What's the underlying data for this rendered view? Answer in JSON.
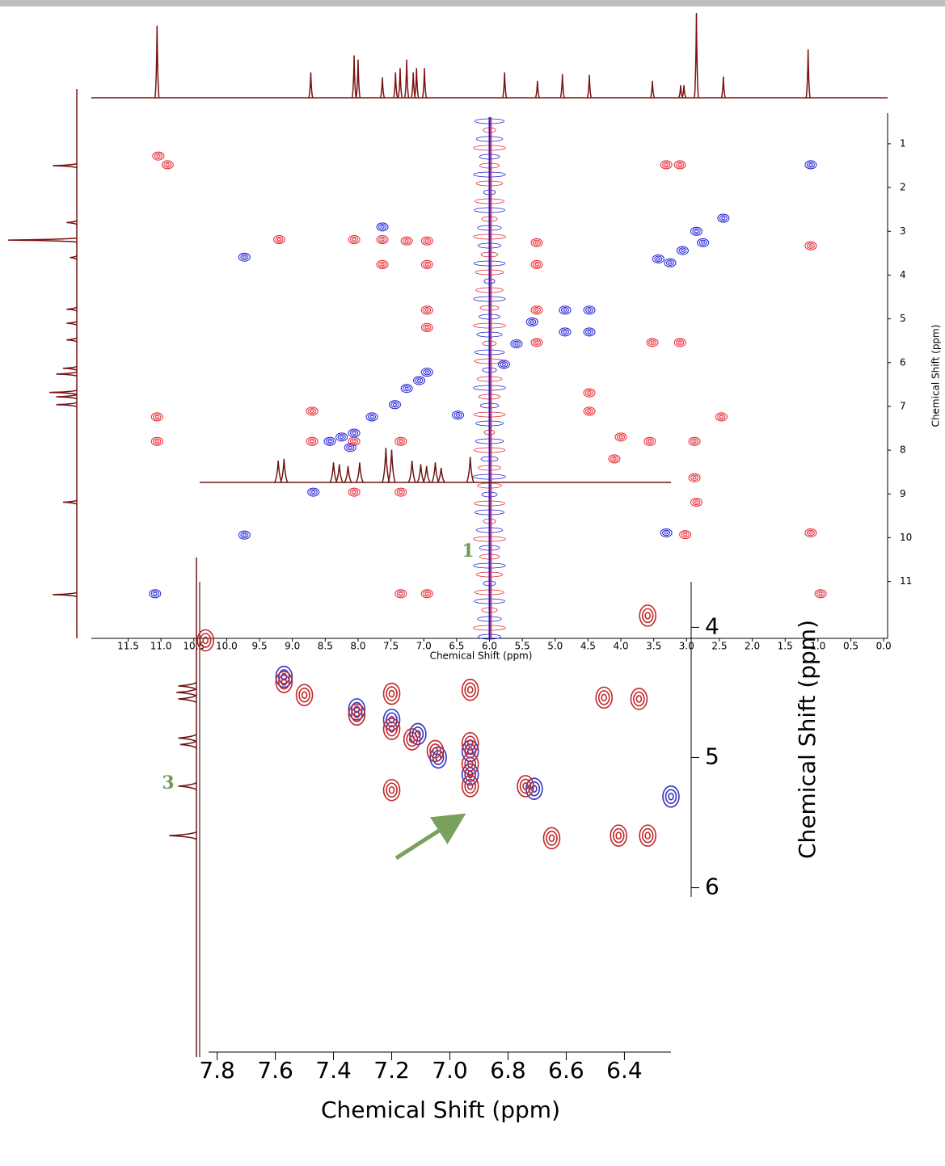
{
  "chart_data": [
    {
      "type": "nmr2d",
      "xlabel": "Chemical Shift (ppm)",
      "ylabel": "Chemical Shift (ppm)",
      "xlim": [
        12.06,
        -0.06
      ],
      "ylim": [
        0.3,
        12.3
      ],
      "xticks": [
        11.5,
        {
          "value": 11,
          "label": "11.0"
        },
        10.5,
        {
          "value": 10,
          "label": "10.0"
        },
        9.5,
        {
          "value": 9,
          "label": "9.0"
        },
        8.5,
        {
          "value": 8,
          "label": "8.0"
        },
        7.5,
        {
          "value": 7,
          "label": "7.0"
        },
        6.5,
        {
          "value": 6,
          "label": "6.0"
        },
        5.5,
        {
          "value": 5,
          "label": "5.0"
        },
        4.5,
        {
          "value": 4,
          "label": "4.0"
        },
        3.5,
        {
          "value": 3,
          "label": "3.0"
        },
        2.5,
        {
          "value": 2,
          "label": "2.0"
        },
        1.5,
        {
          "value": 1,
          "label": "1.0"
        },
        0.5,
        {
          "value": 0,
          "label": "0.0"
        }
      ],
      "yticks": [
        1,
        2,
        3,
        4,
        5,
        6,
        7,
        8,
        9,
        10,
        11
      ],
      "ridge_x": [
        6.0
      ],
      "series": [
        {
          "color": "#1c1cd8",
          "x": [
            1.11,
            2.44,
            2.75,
            3.06,
            3.25,
            3.43,
            4.85,
            5.35,
            4.85,
            4.48,
            4.48,
            5.59,
            5.78,
            6.95,
            7.07,
            7.26,
            7.44,
            7.79,
            8.06,
            8.25,
            8.43,
            8.12,
            8.68,
            9.73,
            11.09,
            9.73,
            3.31,
            6.48,
            7.63,
            2.85
          ],
          "values": [
            1.48,
            2.7,
            3.26,
            3.44,
            3.72,
            3.63,
            4.8,
            5.07,
            5.3,
            4.8,
            5.3,
            5.57,
            6.04,
            6.22,
            6.41,
            6.59,
            6.96,
            7.24,
            7.61,
            7.7,
            7.8,
            7.94,
            8.96,
            9.94,
            11.28,
            3.59,
            9.89,
            7.2,
            2.9,
            3.0
          ]
        },
        {
          "color": "#e8202a",
          "x": [
            11.04,
            10.9,
            11.06,
            11.06,
            9.2,
            8.06,
            7.63,
            7.26,
            6.95,
            7.63,
            6.95,
            5.28,
            5.28,
            1.11,
            6.95,
            6.95,
            5.28,
            5.28,
            3.52,
            3.1,
            3.1,
            3.31,
            8.7,
            8.7,
            8.06,
            7.35,
            4.48,
            4.48,
            2.88,
            2.88,
            2.85,
            3.02,
            1.11,
            7.35,
            6.95,
            0.96,
            2.47,
            3.56,
            8.06,
            7.35,
            4.0,
            4.1
          ],
          "values": [
            1.28,
            1.48,
            7.24,
            7.8,
            3.19,
            3.19,
            3.19,
            3.22,
            3.22,
            3.76,
            3.76,
            3.76,
            3.26,
            3.33,
            4.8,
            5.2,
            4.8,
            5.54,
            5.54,
            5.54,
            1.48,
            1.48,
            7.11,
            7.8,
            7.8,
            7.8,
            6.69,
            7.11,
            7.8,
            8.63,
            9.19,
            9.93,
            9.89,
            11.28,
            11.28,
            11.28,
            7.24,
            7.8,
            8.96,
            8.96,
            7.7,
            8.2
          ]
        }
      ],
      "projection_color": "#7a1010",
      "projection_top": {
        "x": [
          11.06,
          8.72,
          8.06,
          8.0,
          7.63,
          7.43,
          7.36,
          7.26,
          7.16,
          7.11,
          6.99,
          5.77,
          5.27,
          4.89,
          4.48,
          3.52,
          3.09,
          3.04,
          2.85,
          2.44,
          1.15
        ],
        "values": [
          0.85,
          0.3,
          0.5,
          0.45,
          0.24,
          0.3,
          0.35,
          0.45,
          0.3,
          0.35,
          0.35,
          0.3,
          0.2,
          0.28,
          0.27,
          0.2,
          0.15,
          0.15,
          1.0,
          0.25,
          0.57
        ]
      },
      "projection_left": {
        "y": [
          1.5,
          2.8,
          3.2,
          3.6,
          4.78,
          5.1,
          5.48,
          6.13,
          6.26,
          6.68,
          6.78,
          6.96,
          9.19,
          11.3
        ],
        "values": [
          0.35,
          0.15,
          1.0,
          0.1,
          0.15,
          0.15,
          0.15,
          0.2,
          0.3,
          0.4,
          0.3,
          0.3,
          0.2,
          0.35
        ]
      }
    },
    {
      "type": "nmr2d",
      "xlabel": "Chemical Shift (ppm)",
      "ylabel": "Chemical Shift (ppm)",
      "xlim": [
        7.86,
        6.24
      ],
      "ylim": [
        3.65,
        7.3
      ],
      "xticks": [
        7.8,
        7.6,
        7.4,
        7.2,
        {
          "value": 7,
          "label": "7.0"
        },
        6.8,
        6.6,
        6.4
      ],
      "yticks": [
        4,
        5,
        6
      ],
      "ridge_x": [],
      "series": [
        {
          "color": "#3535c0",
          "x": [
            7.57,
            7.32,
            7.2,
            7.11,
            7.04,
            6.93,
            6.93,
            6.71,
            6.24
          ],
          "values": [
            4.38,
            4.63,
            4.71,
            4.82,
            5.0,
            4.95,
            5.13,
            5.24,
            5.3
          ]
        },
        {
          "color": "#c0282a",
          "x": [
            7.57,
            7.5,
            7.32,
            7.2,
            7.2,
            7.13,
            7.05,
            6.93,
            6.93,
            6.93,
            6.93,
            7.2,
            6.74,
            6.32,
            6.47,
            6.35,
            6.32,
            6.42,
            6.65,
            7.84
          ],
          "values": [
            4.42,
            4.52,
            4.67,
            4.51,
            4.78,
            4.86,
            4.95,
            4.48,
            4.89,
            5.05,
            5.22,
            5.25,
            5.22,
            3.91,
            4.54,
            4.55,
            5.6,
            5.6,
            5.62,
            4.1
          ]
        }
      ],
      "projection_color": "#6b1414",
      "projection_top": {
        "x": [
          7.59,
          7.57,
          7.4,
          7.38,
          7.35,
          7.31,
          7.22,
          7.2,
          7.13,
          7.1,
          7.08,
          7.05,
          7.03,
          6.93
        ],
        "values": [
          0.6,
          0.65,
          0.55,
          0.5,
          0.45,
          0.55,
          0.95,
          0.9,
          0.6,
          0.5,
          0.45,
          0.55,
          0.4,
          0.7
        ]
      },
      "projection_left": {
        "y": [
          4.45,
          4.5,
          4.55,
          4.85,
          4.9,
          5.22,
          5.6
        ],
        "values": [
          0.5,
          0.55,
          0.5,
          0.5,
          0.45,
          0.5,
          0.75
        ]
      },
      "annotations": [
        "1",
        "3"
      ]
    }
  ]
}
